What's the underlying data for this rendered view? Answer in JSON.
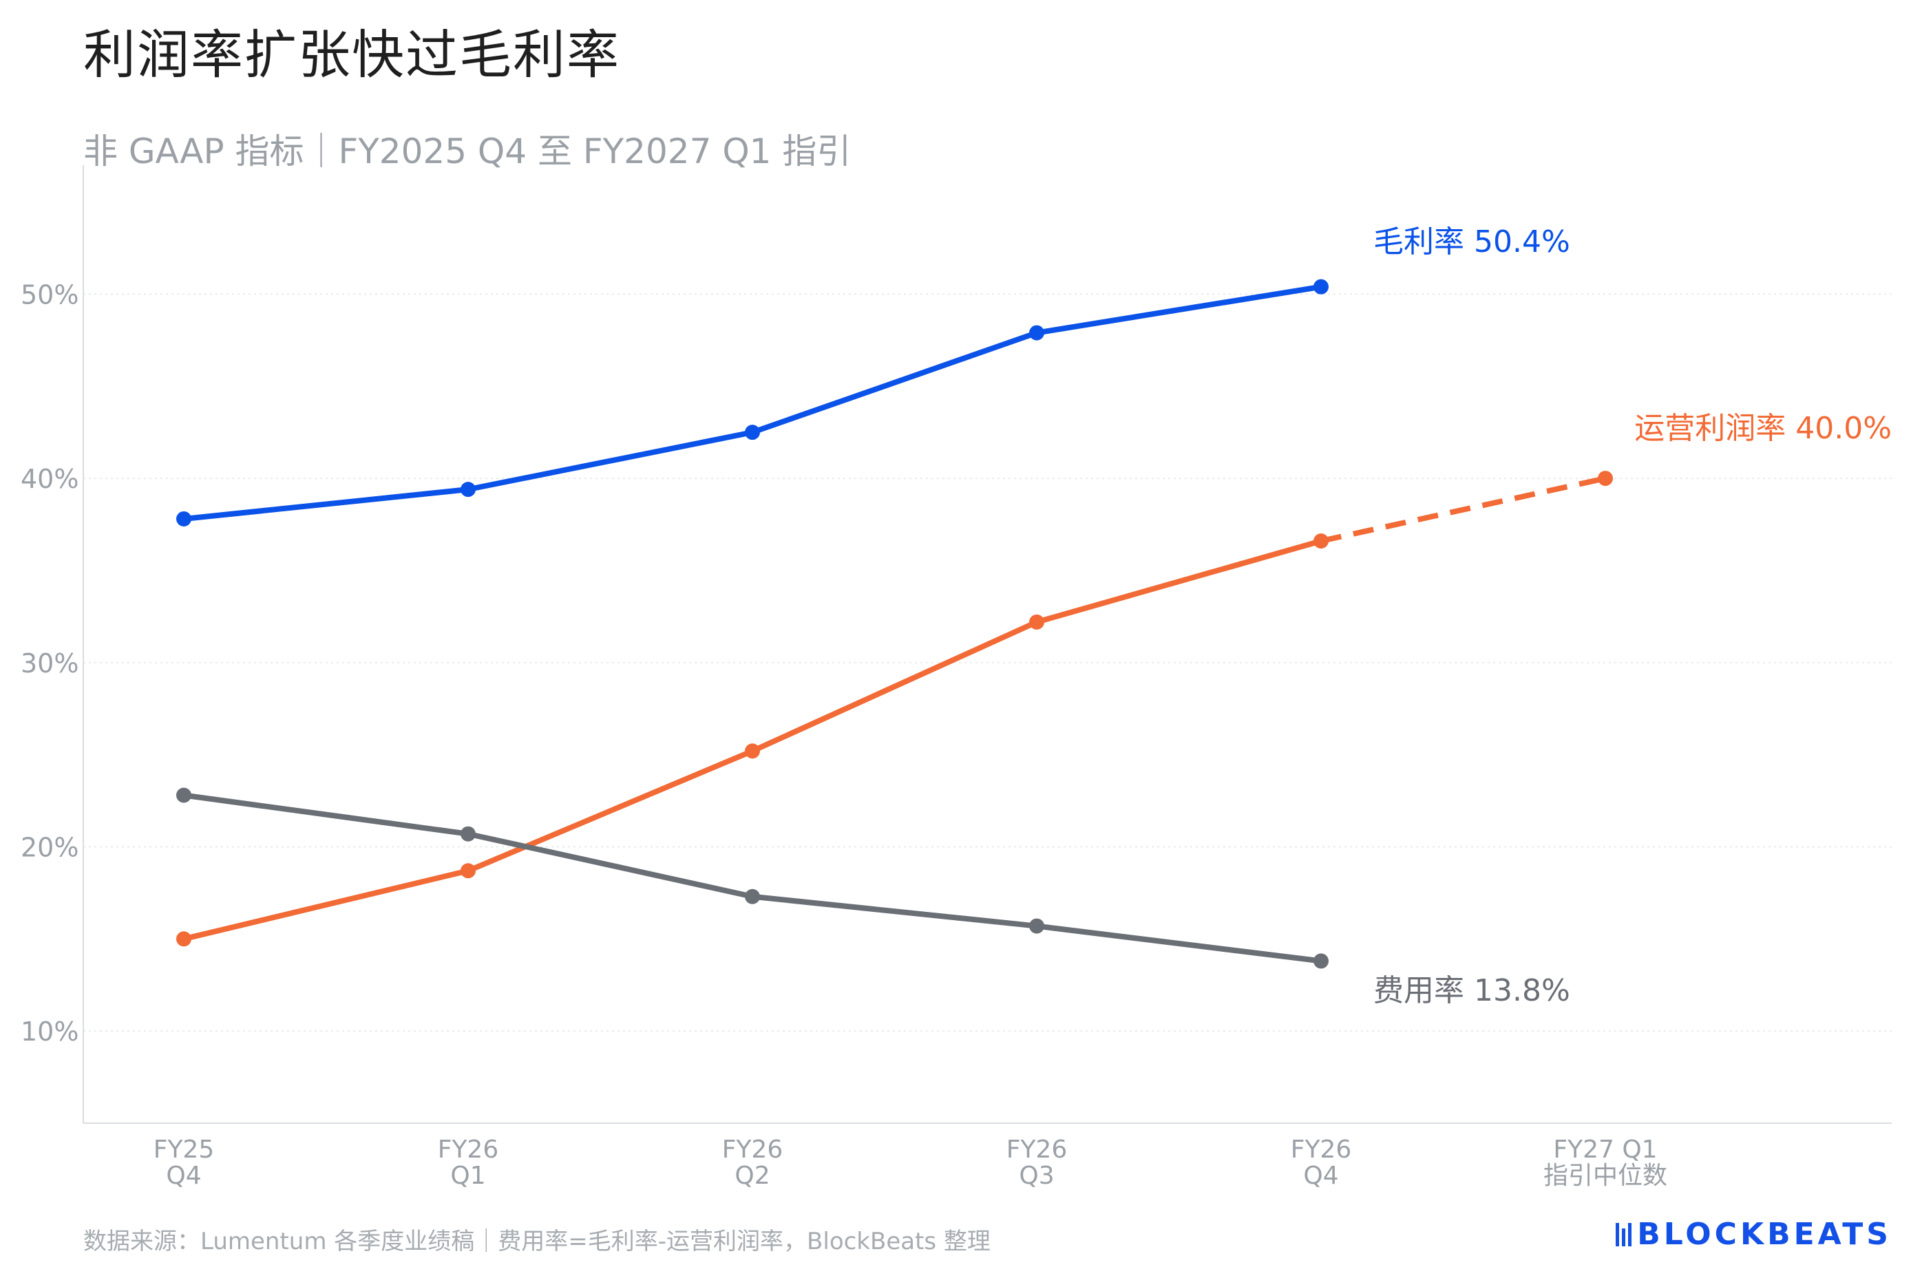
{
  "title": "利润率扩张快过毛利率",
  "subtitle": "非 GAAP 指标｜FY2025 Q4 至 FY2027 Q1 指引",
  "source": "数据来源：Lumentum 各季度业绩稿｜费用率=毛利率-运营利润率，BlockBeats 整理",
  "brand": "BLOCKBEATS",
  "colors": {
    "gross": "#0a52e8",
    "operating": "#f26a35",
    "expense": "#6a6e75",
    "axis": "#9aa0a6",
    "grid": "#e8eaed"
  },
  "chart_data": {
    "type": "line",
    "categories": [
      [
        "FY25",
        "Q4"
      ],
      [
        "FY26",
        "Q1"
      ],
      [
        "FY26",
        "Q2"
      ],
      [
        "FY26",
        "Q3"
      ],
      [
        "FY26",
        "Q4"
      ],
      [
        "FY27 Q1",
        "指引中位数"
      ]
    ],
    "ylim": [
      5,
      57
    ],
    "yticks": [
      10,
      20,
      30,
      40,
      50
    ],
    "ytick_labels": [
      "10%",
      "20%",
      "30%",
      "40%",
      "50%"
    ],
    "grid": true,
    "series": [
      {
        "key": "gross",
        "values": [
          37.8,
          39.4,
          42.5,
          47.9,
          50.4,
          null
        ],
        "end_label": "毛利率 50.4%",
        "color": "#0a52e8"
      },
      {
        "key": "operating",
        "values": [
          15.0,
          18.7,
          25.2,
          32.2,
          36.6,
          40.0
        ],
        "end_label": "运营利润率 40.0%",
        "color": "#f26a35",
        "dashed_last_segment": true
      },
      {
        "key": "expense",
        "values": [
          22.8,
          20.7,
          17.3,
          15.7,
          13.8,
          null
        ],
        "end_label": "费用率 13.8%",
        "color": "#6a6e75"
      }
    ]
  }
}
